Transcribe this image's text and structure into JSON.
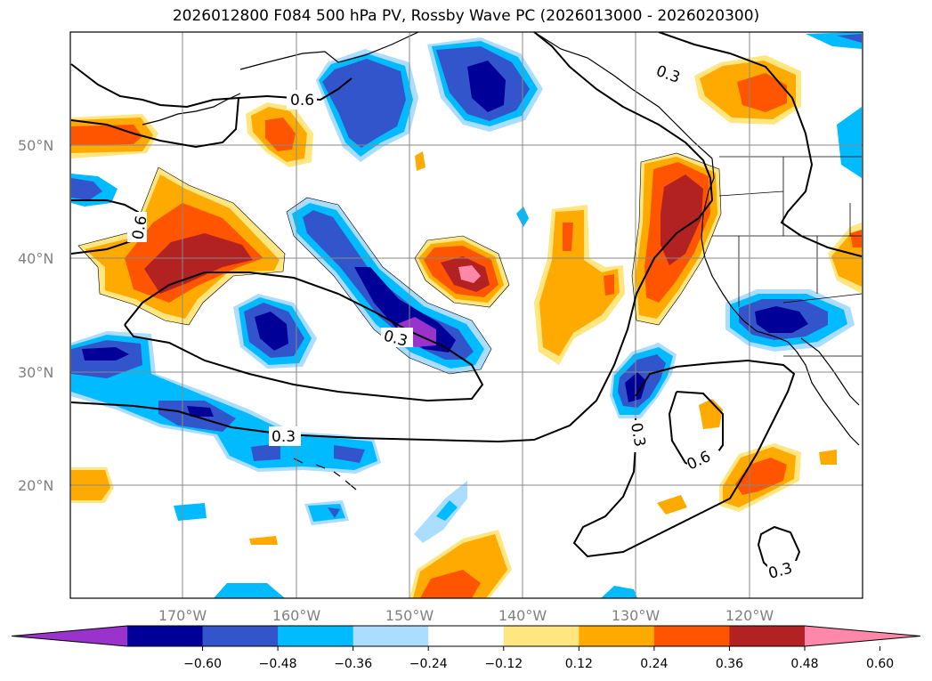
{
  "title": "2026012800 F084 500 hPa PV, Rossby Wave PC (2026013000 - 2026020300)",
  "lat_labels": [
    "50°N",
    "40°N",
    "30°N",
    "20°N"
  ],
  "lon_labels": [
    "170°W",
    "160°W",
    "150°W",
    "140°W",
    "130°W",
    "120°W"
  ],
  "colorbar": {
    "colors": [
      "#9933cc",
      "#000099",
      "#3355cc",
      "#00bbff",
      "#aaddff",
      "#ffffff",
      "#ffe680",
      "#ffaa00",
      "#ff5500",
      "#b22222",
      "#ff88aa"
    ],
    "tick_labels": [
      "−0.60",
      "−0.48",
      "−0.36",
      "−0.24",
      "−0.12",
      "0.12",
      "0.24",
      "0.36",
      "0.48",
      "0.60"
    ]
  },
  "contour_labels": [
    "0.6",
    "0.6",
    "0.3",
    "0.3",
    "0.3",
    "0.6",
    "0.3",
    "0.3"
  ]
}
